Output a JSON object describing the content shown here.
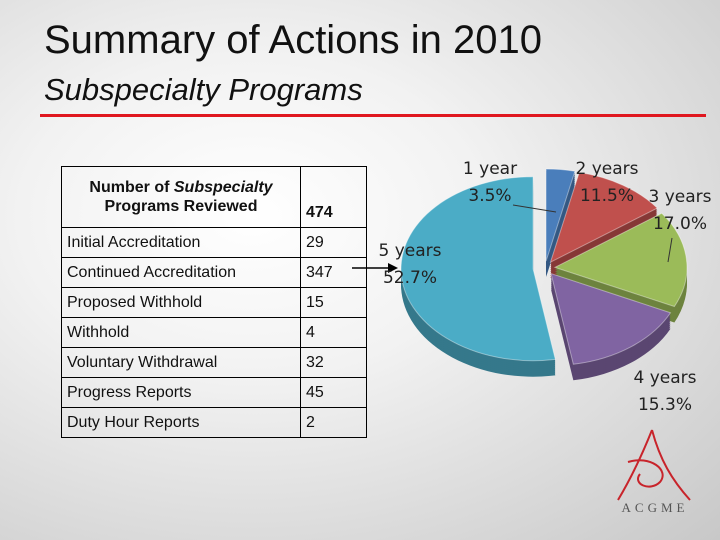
{
  "header": {
    "title": "Summary of Actions in 2010",
    "subtitle": "Subspecialty Programs"
  },
  "table": {
    "header": {
      "before": "Number of",
      "italic": "Subspecialty",
      "after": "Programs Reviewed",
      "value": 474
    },
    "rows": [
      [
        "Initial Accreditation",
        29
      ],
      [
        "Continued Accreditation",
        347
      ],
      [
        "Proposed Withhold",
        15
      ],
      [
        "Withhold",
        4
      ],
      [
        "Voluntary Withdrawal",
        32
      ],
      [
        "Progress Reports",
        45
      ],
      [
        "Duty Hour Reports",
        2
      ]
    ]
  },
  "chart_data": {
    "type": "pie",
    "categories": [
      "1 year",
      "2 years",
      "3 years",
      "4 years",
      "5 years"
    ],
    "values": [
      3.5,
      11.5,
      17.0,
      15.3,
      52.7
    ],
    "value_labels": [
      "3.5%",
      "11.5%",
      "17.0%",
      "15.3%",
      "52.7%"
    ],
    "colors": [
      "#4a7ebb",
      "#c0504d",
      "#9bbb59",
      "#8064a2",
      "#4bacc6"
    ]
  },
  "logo": {
    "text": "ACGME"
  }
}
